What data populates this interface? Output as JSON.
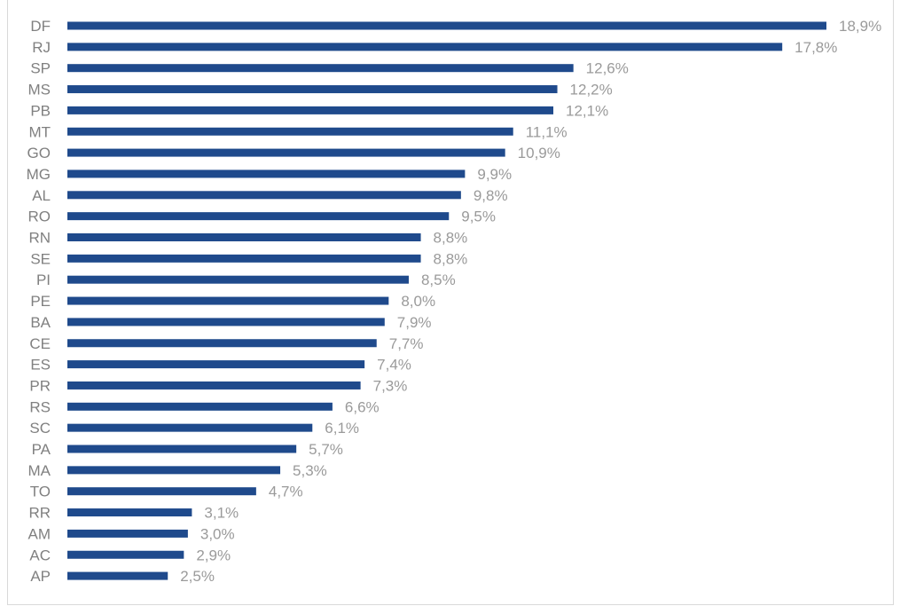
{
  "chart_data": {
    "type": "bar",
    "orientation": "horizontal",
    "title": "",
    "xlabel": "",
    "ylabel": "",
    "bar_color": "#1f4a8c",
    "grid": false,
    "legend": "none",
    "xlim": [
      0,
      18.9
    ],
    "categories": [
      "DF",
      "RJ",
      "SP",
      "MS",
      "PB",
      "MT",
      "GO",
      "MG",
      "AL",
      "RO",
      "RN",
      "SE",
      "PI",
      "PE",
      "BA",
      "CE",
      "ES",
      "PR",
      "RS",
      "SC",
      "PA",
      "MA",
      "TO",
      "RR",
      "AM",
      "AC",
      "AP"
    ],
    "values": [
      18.9,
      17.8,
      12.6,
      12.2,
      12.1,
      11.1,
      10.9,
      9.9,
      9.8,
      9.5,
      8.8,
      8.8,
      8.5,
      8.0,
      7.9,
      7.7,
      7.4,
      7.3,
      6.6,
      6.1,
      5.7,
      5.3,
      4.7,
      3.1,
      3.0,
      2.9,
      2.5
    ],
    "value_labels": [
      "18,9%",
      "17,8%",
      "12,6%",
      "12,2%",
      "12,1%",
      "11,1%",
      "10,9%",
      "9,9%",
      "9,8%",
      "9,5%",
      "8,8%",
      "8,8%",
      "8,5%",
      "8,0%",
      "7,9%",
      "7,7%",
      "7,4%",
      "7,3%",
      "6,6%",
      "6,1%",
      "5,7%",
      "5,3%",
      "4,7%",
      "3,1%",
      "3,0%",
      "2,9%",
      "2,5%"
    ]
  }
}
